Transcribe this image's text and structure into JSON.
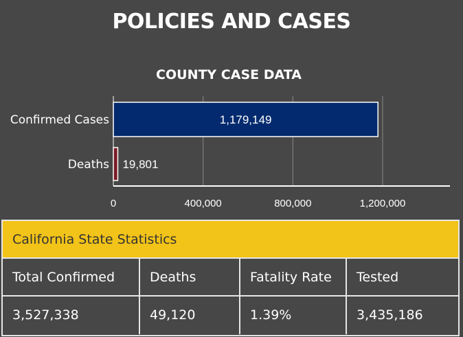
{
  "page": {
    "title": "POLICIES AND CASES"
  },
  "chart_data": {
    "type": "bar",
    "orientation": "horizontal",
    "title": "COUNTY CASE DATA",
    "categories": [
      "Confirmed Cases",
      "Deaths"
    ],
    "values": [
      1179149,
      19801
    ],
    "value_labels": [
      "1,179,149",
      "19,801"
    ],
    "xlim": [
      0,
      1500000
    ],
    "xticks": [
      0,
      400000,
      800000,
      1200000
    ],
    "xtick_labels": [
      "0",
      "400,000",
      "800,000",
      "1,200,000"
    ],
    "grid": true,
    "colors": {
      "Confirmed Cases": "#032a6e",
      "Deaths": "#7a1e28"
    }
  },
  "stats": {
    "header": "California State Statistics",
    "columns": [
      "Total Confirmed",
      "Deaths",
      "Fatality Rate",
      "Tested"
    ],
    "values": [
      "3,527,338",
      "49,120",
      "1.39%",
      "3,435,186"
    ],
    "header_color": "#f2c318"
  }
}
